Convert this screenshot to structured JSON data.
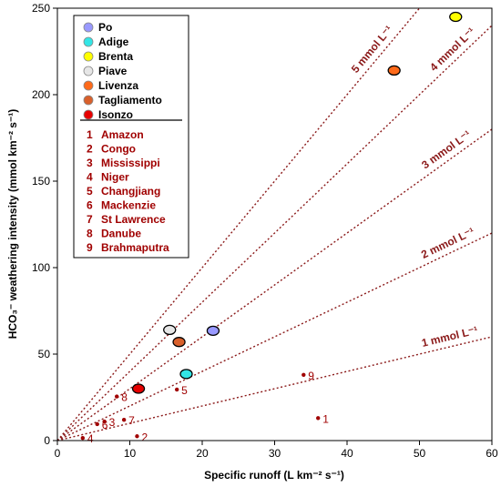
{
  "chart_data": {
    "type": "scatter",
    "xlabel": "Specific runoff (L km⁻² s⁻¹)",
    "ylabel": "HCO₃⁻ weathering intensity (mmol km⁻² s⁻¹)",
    "xlim": [
      0,
      60
    ],
    "ylim": [
      0,
      250
    ],
    "xticks": [
      "0",
      "10",
      "20",
      "30",
      "40",
      "50",
      "60"
    ],
    "yticks": [
      "0",
      "50",
      "100",
      "150",
      "200",
      "250"
    ],
    "grid": false,
    "legend_position": "top-left",
    "rivers": [
      {
        "name": "Po",
        "x": 21.5,
        "y": 63.5,
        "color": "#9999ff"
      },
      {
        "name": "Adige",
        "x": 17.8,
        "y": 38.5,
        "color": "#33e6e6"
      },
      {
        "name": "Brenta",
        "x": 55.0,
        "y": 245.0,
        "color": "#ffff00"
      },
      {
        "name": "Piave",
        "x": 15.5,
        "y": 64.0,
        "color": "#e6e6e6"
      },
      {
        "name": "Livenza",
        "x": 46.5,
        "y": 214.0,
        "color": "#ff6a1a"
      },
      {
        "name": "Tagliamento",
        "x": 16.8,
        "y": 57.0,
        "color": "#d9602b"
      },
      {
        "name": "Isonzo",
        "x": 11.2,
        "y": 30.0,
        "color": "#e60000"
      }
    ],
    "world_rivers": [
      {
        "id": "1",
        "name": "Amazon",
        "x": 36.0,
        "y": 13.0
      },
      {
        "id": "2",
        "name": "Congo",
        "x": 11.0,
        "y": 2.5
      },
      {
        "id": "3",
        "name": "Mississippi",
        "x": 6.5,
        "y": 11.0
      },
      {
        "id": "4",
        "name": "Niger",
        "x": 3.5,
        "y": 1.5
      },
      {
        "id": "5",
        "name": "Changjiang",
        "x": 16.5,
        "y": 29.5
      },
      {
        "id": "6",
        "name": "Mackenzie",
        "x": 5.5,
        "y": 9.5
      },
      {
        "id": "7",
        "name": "St Lawrence",
        "x": 9.2,
        "y": 12.0
      },
      {
        "id": "8",
        "name": "Danube",
        "x": 8.2,
        "y": 25.5
      },
      {
        "id": "9",
        "name": "Brahmaputra",
        "x": 34.0,
        "y": 38.0
      }
    ],
    "reference_lines": [
      {
        "label": "1 mmol L⁻¹",
        "slope": 1
      },
      {
        "label": "2 mmol L⁻¹",
        "slope": 2
      },
      {
        "label": "3 mmol L⁻¹",
        "slope": 3
      },
      {
        "label": "4 mmol L⁻¹",
        "slope": 4
      },
      {
        "label": "5 mmol L⁻¹",
        "slope": 5
      }
    ],
    "colors": {
      "world_rivers": "#a00000",
      "reference_lines": "#8b1a1a",
      "axis": "#000000"
    }
  }
}
